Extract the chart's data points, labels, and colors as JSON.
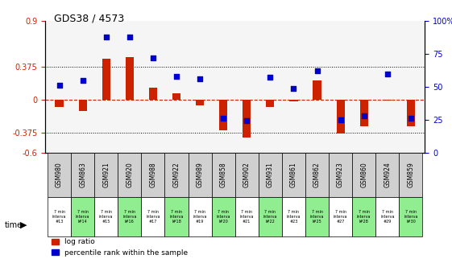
{
  "title": "GDS38 / 4573",
  "samples": [
    "GSM980",
    "GSM863",
    "GSM921",
    "GSM920",
    "GSM988",
    "GSM922",
    "GSM989",
    "GSM858",
    "GSM902",
    "GSM931",
    "GSM861",
    "GSM862",
    "GSM923",
    "GSM860",
    "GSM924",
    "GSM859"
  ],
  "time_labels": [
    "7 min\ninterva\n#13",
    "7 min\ninterva\nl#14",
    "7 min\ninterva\n#15",
    "7 min\ninterva\nl#16",
    "7 min\ninterva\n#17",
    "7 min\ninterva\nl#18",
    "7 min\ninterva\n#19",
    "7 min\ninterva\nl#20",
    "7 min\ninterva\n#21",
    "7 min\ninterva\nl#22",
    "7 min\ninterva\n#23",
    "7 min\ninterva\nl#25",
    "7 min\ninterva\n#27",
    "7 min\ninterva\nl#28",
    "7 min\ninterva\n#29",
    "7 min\ninterva\nl#30"
  ],
  "log_ratio": [
    -0.08,
    -0.13,
    0.47,
    0.49,
    0.14,
    0.08,
    -0.06,
    -0.35,
    -0.43,
    -0.08,
    -0.02,
    0.22,
    -0.38,
    -0.3,
    -0.01,
    -0.3
  ],
  "percentile": [
    51,
    55,
    88,
    88,
    72,
    58,
    56,
    26,
    24,
    57,
    49,
    62,
    25,
    28,
    60,
    26
  ],
  "ylim_left": [
    -0.6,
    0.9
  ],
  "ylim_right": [
    0,
    100
  ],
  "yticks_left": [
    -0.6,
    -0.375,
    0,
    0.375,
    0.9
  ],
  "yticks_right": [
    0,
    25,
    50,
    75,
    100
  ],
  "hlines": [
    0.375,
    -0.375
  ],
  "bar_color": "#cc2200",
  "dot_color": "#0000cc",
  "zero_line_color": "#cc2200",
  "bg_color": "#ffffff",
  "plot_bg": "#ffffff",
  "grid_bg": "#f5f5f5",
  "sample_bg": "#d0d0d0",
  "time_bg_odd": "#ffffff",
  "time_bg_even": "#90ee90",
  "legend_items": [
    "log ratio",
    "percentile rank within the sample"
  ]
}
